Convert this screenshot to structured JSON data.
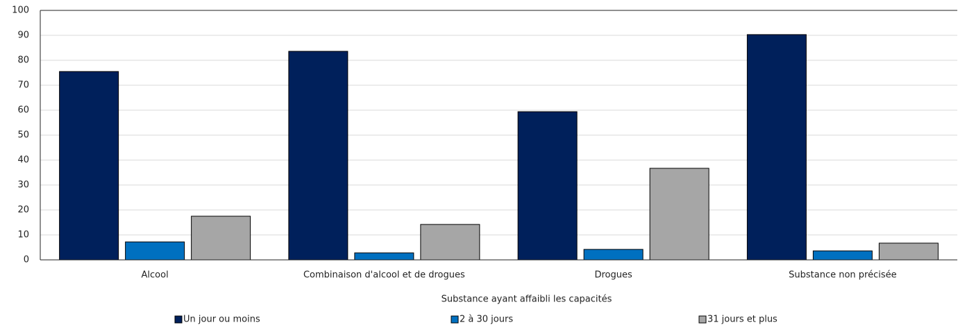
{
  "chart_data": {
    "type": "bar",
    "x_label": "Substance ayant affaibli les capacités",
    "categories": [
      "Alcool",
      "Combinaison d'alcool et de drogues",
      "Drogues",
      "Substance non précisée"
    ],
    "series": [
      {
        "name": "Un jour ou moins",
        "color": "#00205b",
        "values": [
          75.5,
          83.6,
          59.4,
          90.3
        ]
      },
      {
        "name": "2 à 30 jours",
        "color": "#0070c0",
        "values": [
          7.2,
          2.8,
          4.2,
          3.6
        ]
      },
      {
        "name": "31 jours et plus",
        "color": "#a6a6a6",
        "values": [
          17.5,
          14.2,
          36.7,
          6.7
        ]
      }
    ],
    "ylim": [
      0,
      100
    ],
    "yticks": [
      0,
      10,
      20,
      30,
      40,
      50,
      60,
      70,
      80,
      90,
      100
    ],
    "grid": true,
    "legend": "bottom"
  }
}
